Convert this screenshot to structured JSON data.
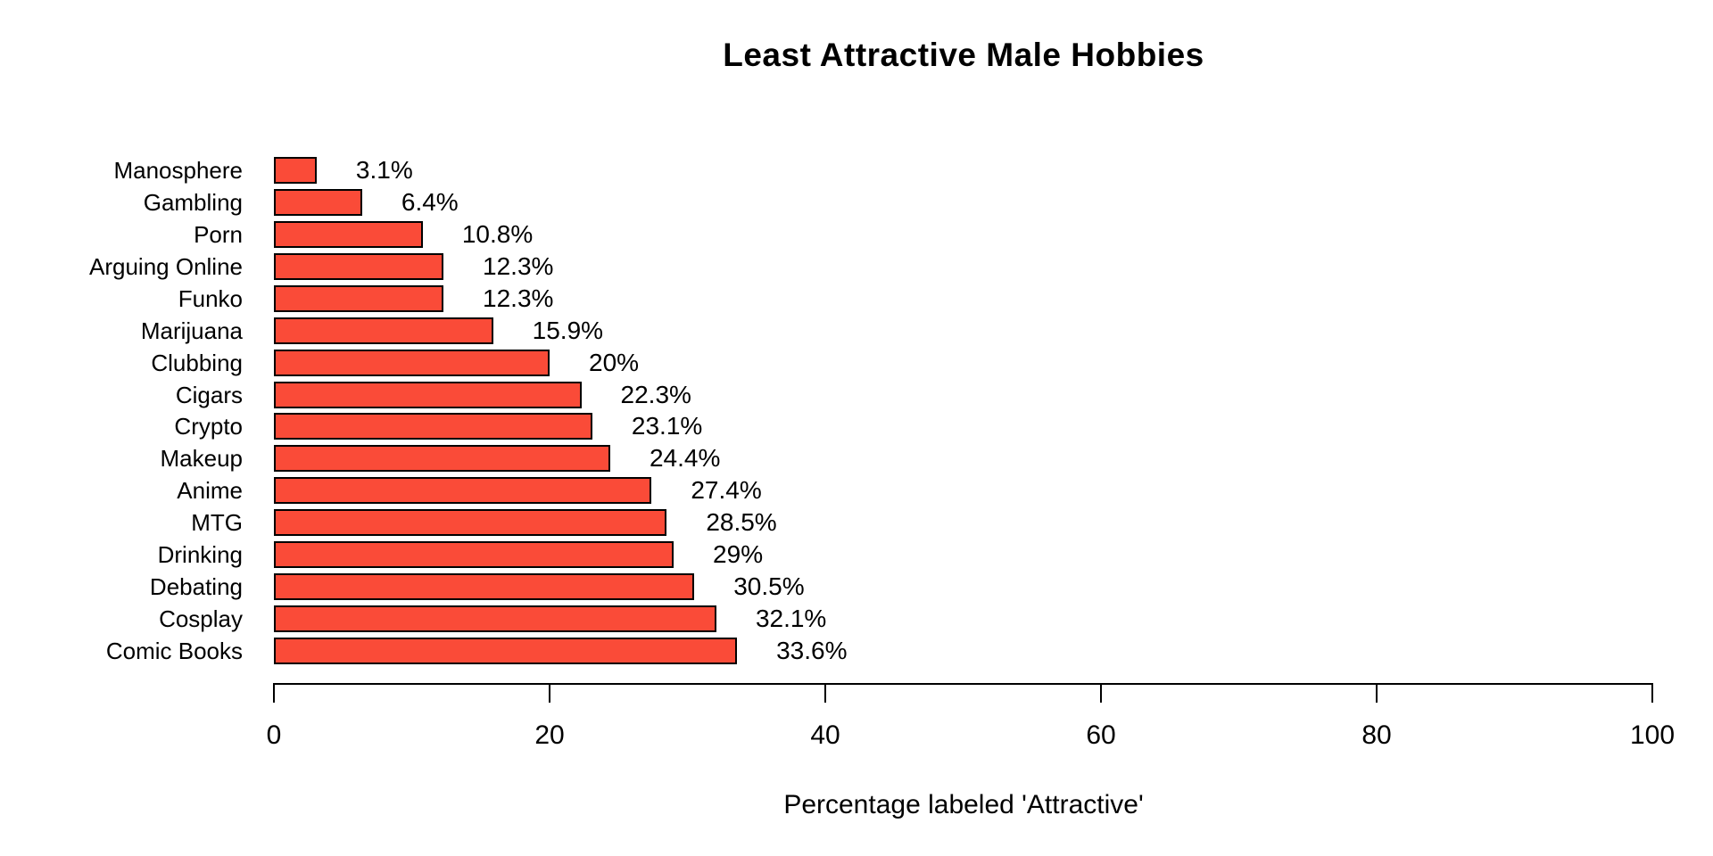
{
  "chart_data": {
    "type": "bar",
    "orientation": "horizontal",
    "title": "Least Attractive Male Hobbies",
    "xlabel": "Percentage labeled 'Attractive'",
    "categories": [
      "Manosphere",
      "Gambling",
      "Porn",
      "Arguing Online",
      "Funko",
      "Marijuana",
      "Clubbing",
      "Cigars",
      "Crypto",
      "Makeup",
      "Anime",
      "MTG",
      "Drinking",
      "Debating",
      "Cosplay",
      "Comic Books"
    ],
    "values": [
      3.1,
      6.4,
      10.8,
      12.3,
      12.3,
      15.9,
      20,
      22.3,
      23.1,
      24.4,
      27.4,
      28.5,
      29,
      30.5,
      32.1,
      33.6
    ],
    "value_labels": [
      "3.1%",
      "6.4%",
      "10.8%",
      "12.3%",
      "12.3%",
      "15.9%",
      "20%",
      "22.3%",
      "23.1%",
      "24.4%",
      "27.4%",
      "28.5%",
      "29%",
      "30.5%",
      "32.1%",
      "33.6%"
    ],
    "xlim": [
      0,
      100
    ],
    "xticks": [
      0,
      20,
      40,
      60,
      80,
      100
    ],
    "grid": false,
    "legend": null,
    "bar_color": "#FA4B38",
    "bar_border_color": "#000000",
    "axis_color": "#000000",
    "text_color": "#000000",
    "background_color": "#FFFFFF"
  }
}
